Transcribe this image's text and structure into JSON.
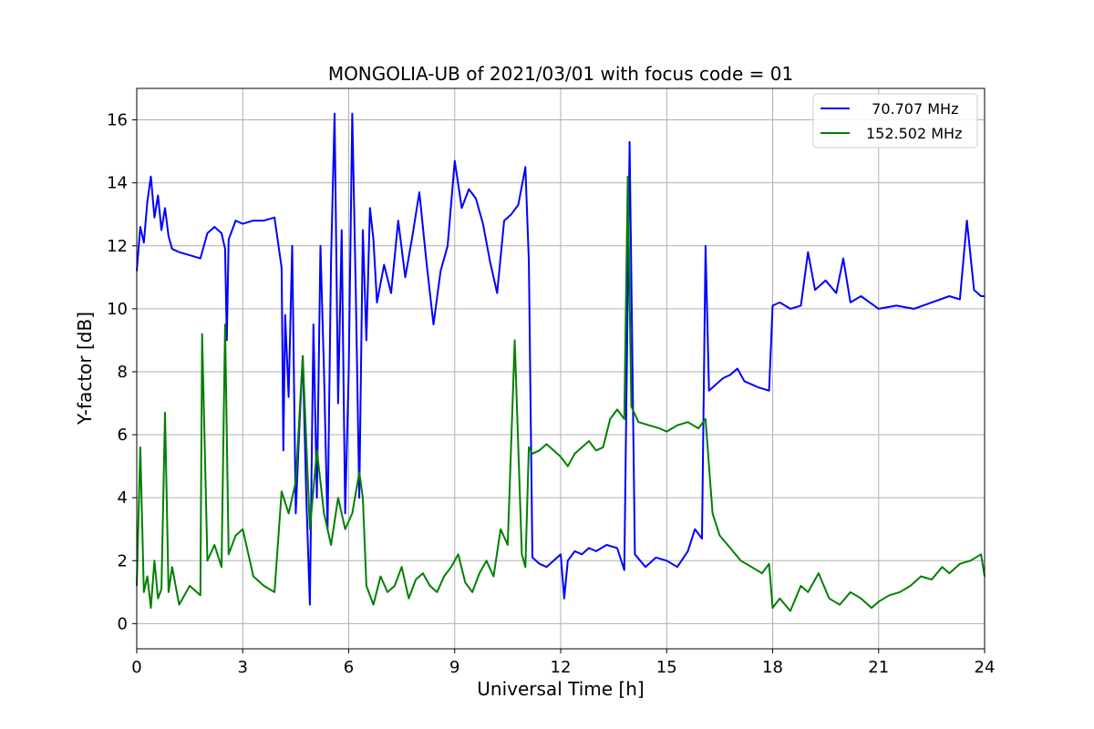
{
  "chart_data": {
    "type": "line",
    "title": "MONGOLIA-UB of 2021/03/01 with focus code = 01",
    "xlabel": "Universal Time [h]",
    "ylabel": "Y-factor [dB]",
    "xlim": [
      0,
      24
    ],
    "ylim": [
      -0.8,
      17
    ],
    "xticks": [
      0,
      3,
      6,
      9,
      12,
      15,
      18,
      21,
      24
    ],
    "xtick_labels": [
      "0",
      "3",
      "6",
      "9",
      "12",
      "15",
      "18",
      "21",
      "24"
    ],
    "yticks": [
      0,
      2,
      4,
      6,
      8,
      10,
      12,
      14,
      16
    ],
    "ytick_labels": [
      "0",
      "2",
      "4",
      "6",
      "8",
      "10",
      "12",
      "14",
      "16"
    ],
    "grid": true,
    "legend_position": "top-right",
    "series": [
      {
        "name": "  70.707 MHz",
        "color": "#0000ff",
        "x": [
          0.0,
          0.1,
          0.2,
          0.3,
          0.4,
          0.5,
          0.6,
          0.7,
          0.8,
          0.9,
          1.0,
          1.2,
          1.5,
          1.8,
          2.0,
          2.2,
          2.4,
          2.5,
          2.55,
          2.6,
          2.8,
          3.0,
          3.3,
          3.6,
          3.9,
          4.1,
          4.15,
          4.2,
          4.3,
          4.4,
          4.5,
          4.6,
          4.7,
          4.8,
          4.9,
          5.0,
          5.1,
          5.2,
          5.3,
          5.4,
          5.5,
          5.6,
          5.7,
          5.8,
          5.9,
          6.0,
          6.1,
          6.2,
          6.3,
          6.4,
          6.5,
          6.6,
          6.7,
          6.8,
          7.0,
          7.2,
          7.4,
          7.6,
          7.8,
          8.0,
          8.2,
          8.4,
          8.6,
          8.8,
          9.0,
          9.2,
          9.4,
          9.6,
          9.8,
          10.0,
          10.2,
          10.4,
          10.6,
          10.8,
          11.0,
          11.1,
          11.2,
          11.4,
          11.6,
          11.8,
          12.0,
          12.1,
          12.2,
          12.4,
          12.6,
          12.8,
          13.0,
          13.3,
          13.6,
          13.8,
          13.95,
          14.1,
          14.4,
          14.7,
          15.0,
          15.3,
          15.6,
          15.8,
          16.0,
          16.1,
          16.2,
          16.4,
          16.6,
          16.8,
          17.0,
          17.2,
          17.4,
          17.6,
          17.9,
          18.0,
          18.2,
          18.5,
          18.8,
          19.0,
          19.2,
          19.5,
          19.8,
          20.0,
          20.2,
          20.5,
          21.0,
          21.5,
          22.0,
          22.5,
          23.0,
          23.3,
          23.5,
          23.7,
          23.9,
          24.0
        ],
        "y": [
          11.2,
          12.6,
          12.1,
          13.4,
          14.2,
          12.9,
          13.6,
          12.5,
          13.2,
          12.3,
          11.9,
          11.8,
          11.7,
          11.6,
          12.4,
          12.6,
          12.4,
          11.9,
          9.0,
          12.2,
          12.8,
          12.7,
          12.8,
          12.8,
          12.9,
          11.3,
          5.5,
          9.8,
          7.2,
          12.0,
          3.5,
          6.2,
          8.5,
          4.0,
          0.6,
          9.5,
          4.0,
          12.0,
          8.0,
          3.0,
          11.5,
          16.2,
          7.0,
          12.5,
          3.5,
          8.0,
          16.2,
          10.5,
          4.0,
          12.5,
          9.0,
          13.2,
          12.2,
          10.2,
          11.4,
          10.5,
          12.8,
          11.0,
          12.3,
          13.7,
          11.5,
          9.5,
          11.2,
          12.0,
          14.7,
          13.2,
          13.8,
          13.5,
          12.7,
          11.5,
          10.5,
          12.8,
          13.0,
          13.3,
          14.5,
          11.5,
          2.1,
          1.9,
          1.8,
          2.0,
          2.2,
          0.8,
          2.0,
          2.3,
          2.2,
          2.4,
          2.3,
          2.5,
          2.4,
          1.7,
          15.3,
          2.2,
          1.8,
          2.1,
          2.0,
          1.8,
          2.3,
          3.0,
          2.7,
          12.0,
          7.4,
          7.6,
          7.8,
          7.9,
          8.1,
          7.7,
          7.6,
          7.5,
          7.4,
          10.1,
          10.2,
          10.0,
          10.1,
          11.8,
          10.6,
          10.9,
          10.5,
          11.6,
          10.2,
          10.4,
          10.0,
          10.1,
          10.0,
          10.2,
          10.4,
          10.3,
          12.8,
          10.6,
          10.4,
          10.4
        ]
      },
      {
        "name": "152.502 MHz",
        "color": "#008000",
        "x": [
          0.0,
          0.1,
          0.2,
          0.3,
          0.4,
          0.5,
          0.6,
          0.7,
          0.8,
          0.9,
          1.0,
          1.2,
          1.5,
          1.8,
          1.85,
          2.0,
          2.2,
          2.4,
          2.5,
          2.6,
          2.8,
          3.0,
          3.3,
          3.6,
          3.9,
          4.1,
          4.3,
          4.5,
          4.7,
          4.9,
          5.1,
          5.3,
          5.5,
          5.7,
          5.9,
          6.1,
          6.3,
          6.4,
          6.5,
          6.7,
          6.9,
          7.1,
          7.3,
          7.5,
          7.7,
          7.9,
          8.1,
          8.3,
          8.5,
          8.7,
          8.9,
          9.1,
          9.3,
          9.5,
          9.7,
          9.9,
          10.1,
          10.3,
          10.5,
          10.7,
          10.9,
          11.0,
          11.1,
          11.2,
          11.4,
          11.6,
          11.8,
          12.0,
          12.2,
          12.4,
          12.6,
          12.8,
          13.0,
          13.2,
          13.4,
          13.6,
          13.8,
          13.9,
          14.0,
          14.2,
          14.5,
          14.8,
          15.0,
          15.3,
          15.6,
          15.9,
          16.1,
          16.3,
          16.5,
          16.8,
          17.1,
          17.4,
          17.7,
          17.9,
          18.0,
          18.2,
          18.5,
          18.8,
          19.0,
          19.3,
          19.6,
          19.9,
          20.2,
          20.5,
          20.8,
          21.0,
          21.3,
          21.6,
          21.9,
          22.2,
          22.5,
          22.8,
          23.0,
          23.3,
          23.6,
          23.9,
          24.0
        ],
        "y": [
          1.2,
          5.6,
          1.0,
          1.5,
          0.5,
          2.0,
          0.8,
          1.1,
          6.7,
          1.0,
          1.8,
          0.6,
          1.2,
          0.9,
          9.2,
          2.0,
          2.5,
          1.8,
          9.5,
          2.2,
          2.8,
          3.0,
          1.5,
          1.2,
          1.0,
          4.2,
          3.5,
          4.5,
          8.5,
          3.0,
          5.5,
          3.5,
          2.5,
          4.0,
          3.0,
          3.5,
          4.8,
          4.0,
          1.2,
          0.6,
          1.5,
          1.0,
          1.2,
          1.8,
          0.8,
          1.4,
          1.6,
          1.2,
          1.0,
          1.5,
          1.8,
          2.2,
          1.3,
          1.0,
          1.6,
          2.0,
          1.5,
          3.0,
          2.5,
          9.0,
          2.2,
          1.8,
          5.6,
          5.4,
          5.5,
          5.7,
          5.5,
          5.3,
          5.0,
          5.4,
          5.6,
          5.8,
          5.5,
          5.6,
          6.5,
          6.8,
          6.5,
          14.2,
          6.9,
          6.4,
          6.3,
          6.2,
          6.1,
          6.3,
          6.4,
          6.2,
          6.5,
          3.5,
          2.8,
          2.4,
          2.0,
          1.8,
          1.6,
          1.9,
          0.5,
          0.8,
          0.4,
          1.2,
          1.0,
          1.6,
          0.8,
          0.6,
          1.0,
          0.8,
          0.5,
          0.7,
          0.9,
          1.0,
          1.2,
          1.5,
          1.4,
          1.8,
          1.6,
          1.9,
          2.0,
          2.2,
          1.5
        ]
      }
    ]
  }
}
